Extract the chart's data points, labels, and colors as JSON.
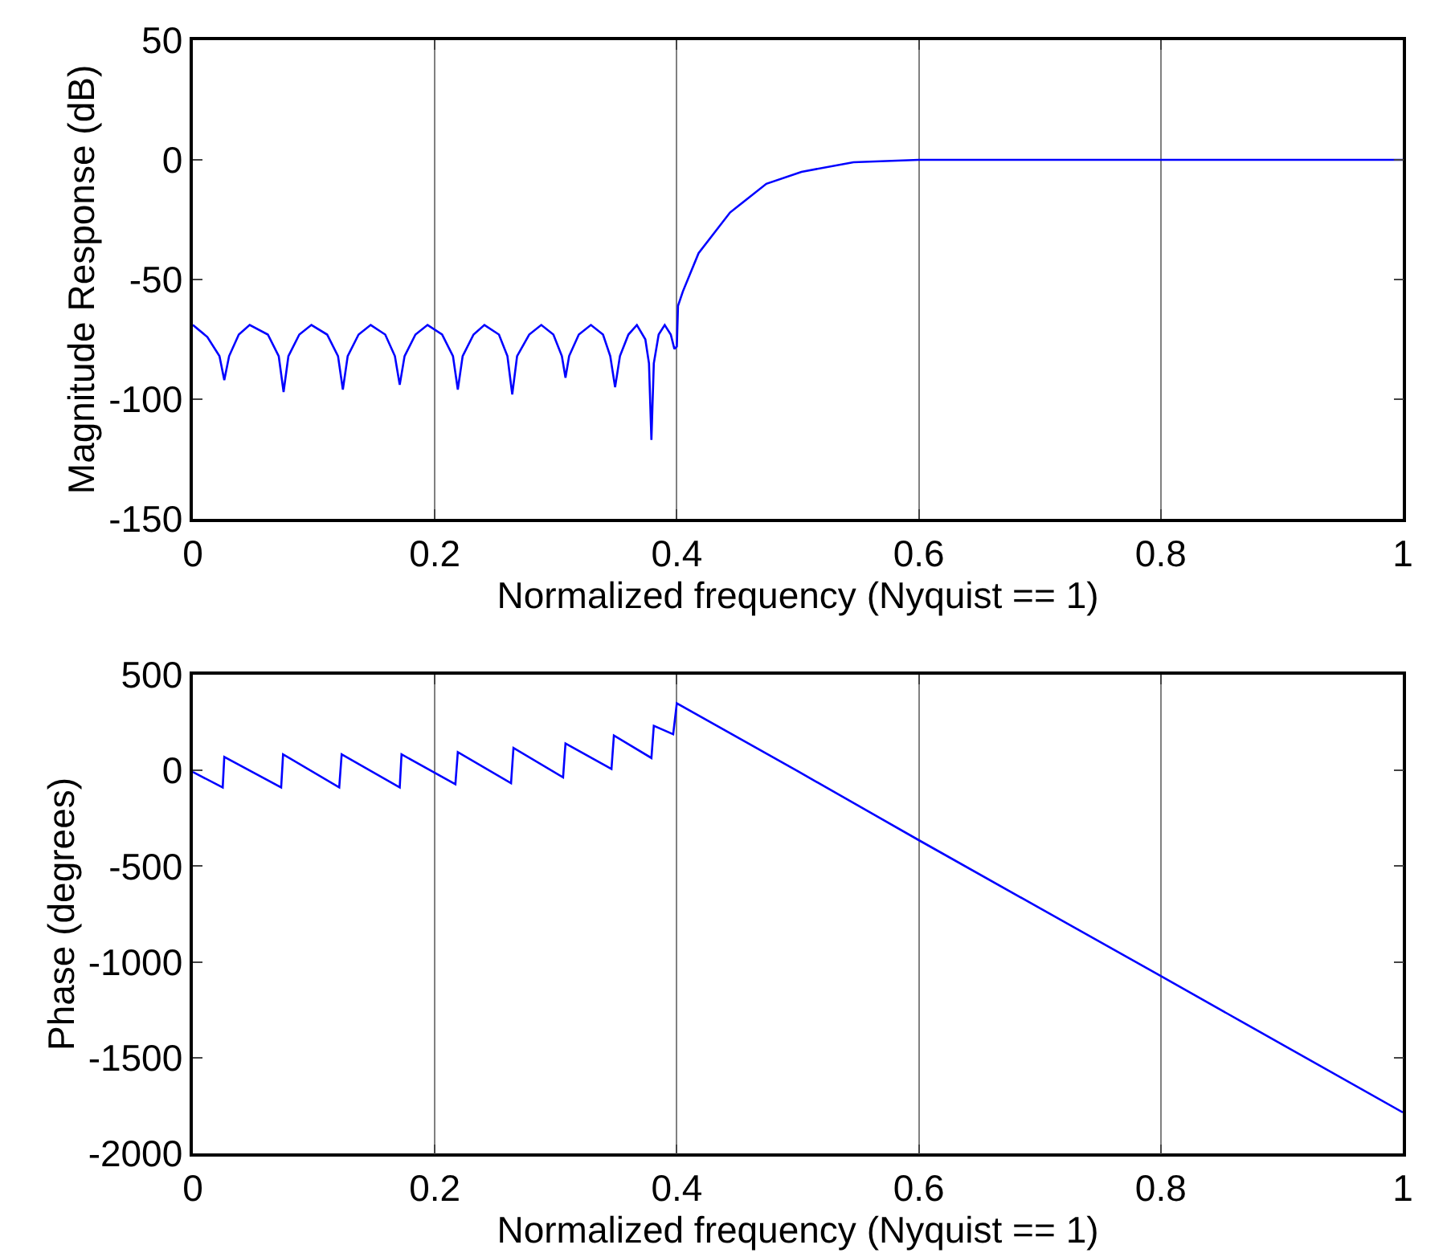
{
  "chart_data": [
    {
      "type": "line",
      "xlabel": "Normalized frequency (Nyquist == 1)",
      "ylabel": "Magnitude Response (dB)",
      "color": "#0000ff",
      "grid": "x",
      "xlim": [
        0,
        1
      ],
      "xticks": [
        0,
        0.2,
        0.4,
        0.6,
        0.8,
        1
      ],
      "ylim": [
        -150,
        50
      ],
      "yticks": [
        -150,
        -100,
        -50,
        0,
        50
      ],
      "x": [
        0,
        0.012,
        0.022,
        0.026,
        0.03,
        0.038,
        0.047,
        0.062,
        0.071,
        0.075,
        0.079,
        0.088,
        0.098,
        0.111,
        0.12,
        0.124,
        0.128,
        0.137,
        0.147,
        0.159,
        0.167,
        0.171,
        0.175,
        0.184,
        0.194,
        0.206,
        0.215,
        0.219,
        0.223,
        0.232,
        0.241,
        0.253,
        0.26,
        0.264,
        0.268,
        0.278,
        0.288,
        0.298,
        0.305,
        0.308,
        0.311,
        0.319,
        0.329,
        0.339,
        0.345,
        0.349,
        0.353,
        0.36,
        0.367,
        0.374,
        0.377,
        0.379,
        0.381,
        0.385,
        0.39,
        0.395,
        0.398,
        0.4,
        0.401,
        0.405,
        0.418,
        0.444,
        0.474,
        0.503,
        0.546,
        0.6,
        0.7,
        0.8,
        0.9,
        1.0
      ],
      "values": [
        -69,
        -74,
        -82,
        -92,
        -82,
        -73,
        -69,
        -73,
        -82,
        -97,
        -82,
        -73,
        -69,
        -73,
        -82,
        -96,
        -82,
        -73,
        -69,
        -73,
        -82,
        -94,
        -82,
        -73,
        -69,
        -73,
        -82,
        -96,
        -82,
        -73,
        -69,
        -73,
        -82,
        -98,
        -82,
        -73,
        -69,
        -73,
        -82,
        -91,
        -82,
        -73,
        -69,
        -73,
        -82,
        -95,
        -82,
        -73,
        -69,
        -75,
        -85,
        -117,
        -85,
        -73,
        -69,
        -73,
        -79,
        -78,
        -61,
        -55,
        -39,
        -22,
        -10,
        -5,
        -1,
        0,
        0,
        0,
        0,
        0
      ]
    },
    {
      "type": "line",
      "xlabel": "Normalized frequency (Nyquist == 1)",
      "ylabel": "Phase (degrees)",
      "color": "#0000ff",
      "grid": "x",
      "xlim": [
        0,
        1
      ],
      "xticks": [
        0,
        0.2,
        0.4,
        0.6,
        0.8,
        1
      ],
      "ylim": [
        -2000,
        500
      ],
      "yticks": [
        -2000,
        -1500,
        -1000,
        -500,
        0,
        500
      ],
      "x": [
        0,
        0.0247,
        0.026,
        0.073,
        0.0746,
        0.121,
        0.123,
        0.171,
        0.1725,
        0.217,
        0.219,
        0.263,
        0.265,
        0.306,
        0.308,
        0.346,
        0.348,
        0.379,
        0.381,
        0.397,
        0.4,
        0.5,
        0.6,
        0.7,
        0.8,
        0.9,
        1.0
      ],
      "values": [
        -8,
        -89,
        71,
        -89,
        84,
        -89,
        84,
        -89,
        84,
        -72,
        96,
        -67,
        118,
        -36,
        141,
        8,
        183,
        65,
        233,
        189,
        351,
        -4,
        -364,
        -719,
        -1074,
        -1430,
        -1786
      ]
    }
  ]
}
